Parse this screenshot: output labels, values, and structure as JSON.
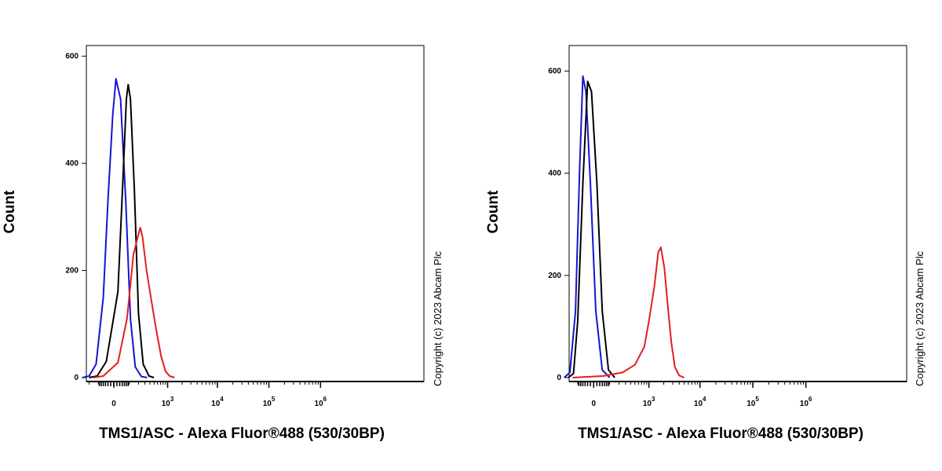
{
  "chart_data": [
    {
      "type": "line",
      "xlabel": "TMS1/ASC - Alexa Fluor®488 (530/30BP)",
      "ylabel": "Count",
      "x_scale": "biexponential",
      "ylim": [
        0,
        620
      ],
      "y_ticks": [
        "0",
        "200",
        "400",
        "600"
      ],
      "x_ticks": [
        "0",
        "10^3",
        "10^4",
        "10^5",
        "10^6"
      ],
      "grid": false,
      "copyright": "Copyright (c) 2023 Abcam Plc",
      "series": [
        {
          "color": "#1414d2",
          "points": [
            [
              -300,
              0
            ],
            [
              -200,
              3
            ],
            [
              -120,
              25
            ],
            [
              -60,
              150
            ],
            [
              -30,
              330
            ],
            [
              -5,
              490
            ],
            [
              10,
              558
            ],
            [
              35,
              520
            ],
            [
              70,
              330
            ],
            [
              110,
              110
            ],
            [
              160,
              20
            ],
            [
              240,
              2
            ],
            [
              340,
              0
            ]
          ]
        },
        {
          "color": "#000000",
          "points": [
            [
              -200,
              0
            ],
            [
              -110,
              3
            ],
            [
              -40,
              30
            ],
            [
              20,
              160
            ],
            [
              50,
              370
            ],
            [
              75,
              520
            ],
            [
              90,
              547
            ],
            [
              110,
              520
            ],
            [
              150,
              350
            ],
            [
              200,
              120
            ],
            [
              270,
              25
            ],
            [
              380,
              3
            ],
            [
              500,
              0
            ]
          ]
        },
        {
          "color": "#e02020",
          "points": [
            [
              -150,
              0
            ],
            [
              -60,
              3
            ],
            [
              20,
              28
            ],
            [
              80,
              110
            ],
            [
              140,
              230
            ],
            [
              190,
              262
            ],
            [
              225,
              280
            ],
            [
              260,
              262
            ],
            [
              330,
              200
            ],
            [
              430,
              145
            ],
            [
              560,
              90
            ],
            [
              720,
              40
            ],
            [
              900,
              12
            ],
            [
              1100,
              3
            ],
            [
              1400,
              0
            ]
          ]
        }
      ]
    },
    {
      "type": "line",
      "xlabel": "TMS1/ASC - Alexa Fluor®488 (530/30BP)",
      "ylabel": "Count",
      "x_scale": "biexponential",
      "ylim": [
        0,
        650
      ],
      "y_ticks": [
        "0",
        "200",
        "400",
        "600"
      ],
      "x_ticks": [
        "0",
        "10^3",
        "10^4",
        "10^5",
        "10^6"
      ],
      "grid": false,
      "copyright": "Copyright (c) 2023 Abcam Plc",
      "series": [
        {
          "color": "#1414d2",
          "points": [
            [
              -260,
              0
            ],
            [
              -180,
              10
            ],
            [
              -120,
              130
            ],
            [
              -85,
              400
            ],
            [
              -60,
              590
            ],
            [
              -40,
              560
            ],
            [
              -15,
              380
            ],
            [
              10,
              130
            ],
            [
              45,
              15
            ],
            [
              100,
              0
            ]
          ]
        },
        {
          "color": "#000000",
          "points": [
            [
              -200,
              0
            ],
            [
              -140,
              8
            ],
            [
              -100,
              110
            ],
            [
              -60,
              380
            ],
            [
              -30,
              580
            ],
            [
              -10,
              560
            ],
            [
              15,
              380
            ],
            [
              45,
              130
            ],
            [
              90,
              15
            ],
            [
              150,
              0
            ]
          ]
        },
        {
          "color": "#e02020",
          "points": [
            [
              -150,
              0
            ],
            [
              50,
              3
            ],
            [
              250,
              10
            ],
            [
              500,
              25
            ],
            [
              800,
              60
            ],
            [
              1000,
              110
            ],
            [
              1300,
              180
            ],
            [
              1550,
              245
            ],
            [
              1750,
              255
            ],
            [
              2050,
              215
            ],
            [
              2400,
              140
            ],
            [
              2800,
              70
            ],
            [
              3300,
              20
            ],
            [
              4000,
              4
            ],
            [
              5000,
              0
            ]
          ]
        }
      ]
    }
  ]
}
